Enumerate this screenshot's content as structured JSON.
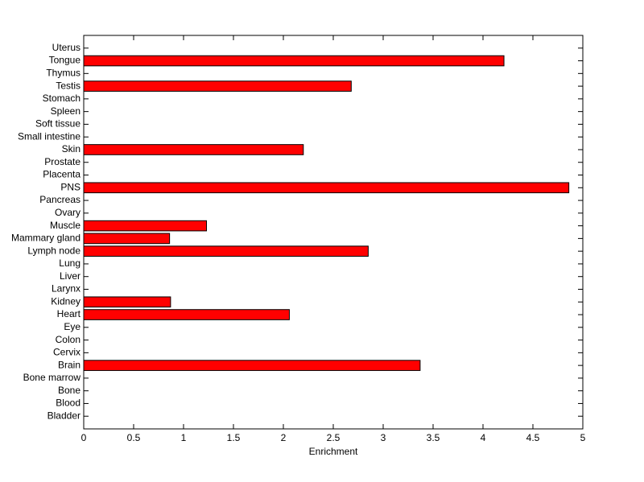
{
  "chart_data": {
    "type": "barh",
    "xlabel": "Enrichment",
    "categories": [
      "Bladder",
      "Blood",
      "Bone",
      "Bone marrow",
      "Brain",
      "Cervix",
      "Colon",
      "Eye",
      "Heart",
      "Kidney",
      "Larynx",
      "Liver",
      "Lung",
      "Lymph node",
      "Mammary gland",
      "Muscle",
      "Ovary",
      "Pancreas",
      "PNS",
      "Placenta",
      "Prostate",
      "Skin",
      "Small intestine",
      "Soft tissue",
      "Spleen",
      "Stomach",
      "Testis",
      "Thymus",
      "Tongue",
      "Uterus"
    ],
    "values": [
      0,
      0,
      0,
      0,
      3.37,
      0,
      0,
      0,
      2.06,
      0.87,
      0,
      0,
      0,
      2.85,
      0.86,
      1.23,
      0,
      0,
      4.86,
      0,
      0,
      2.2,
      0,
      0,
      0,
      0,
      2.68,
      0,
      4.21,
      0
    ],
    "color": "#ff0000",
    "xlim": [
      0,
      5
    ],
    "xticks": [
      0,
      0.5,
      1,
      1.5,
      2,
      2.5,
      3,
      3.5,
      4,
      4.5,
      5
    ]
  }
}
